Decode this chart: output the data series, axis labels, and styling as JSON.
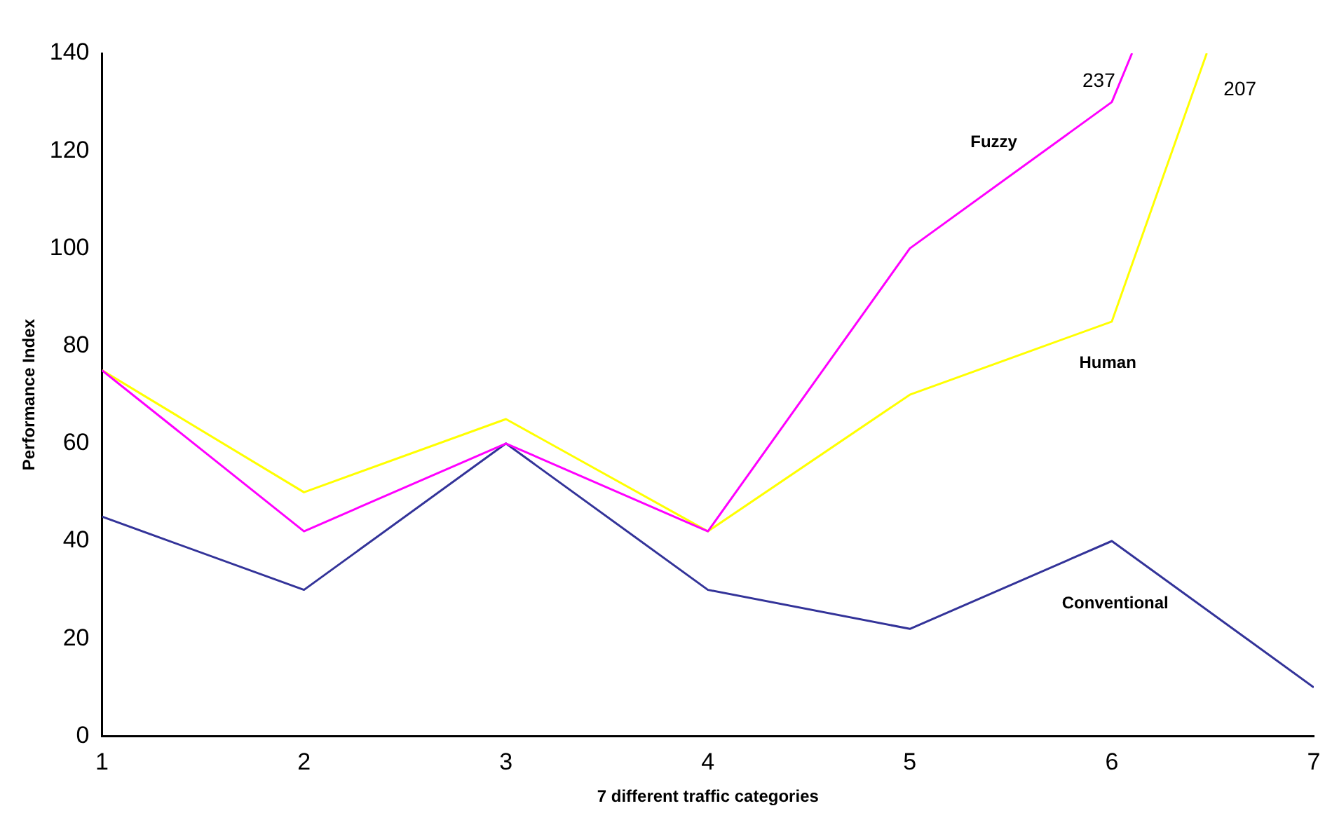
{
  "chart_data": {
    "type": "line",
    "xlabel": "7 different traffic categories",
    "ylabel": "Performance Index",
    "x": [
      1,
      2,
      3,
      4,
      5,
      6,
      7
    ],
    "xlim": [
      1,
      7
    ],
    "xticks": [
      1,
      2,
      3,
      4,
      5,
      6,
      7
    ],
    "ylim": [
      0,
      140
    ],
    "yticks": [
      0,
      20,
      40,
      60,
      80,
      100,
      120,
      140
    ],
    "grid": false,
    "legend": false,
    "marker": "none",
    "line_style": "solid",
    "annotations": [
      "237",
      "207"
    ],
    "series": [
      {
        "name": "Fuzzy",
        "color": "#ff00ff",
        "x": [
          1,
          2,
          3,
          4,
          5,
          6,
          6.1
        ],
        "values": [
          75,
          42,
          60,
          42,
          100,
          130,
          140
        ]
      },
      {
        "name": "Human",
        "color": "#ffff00",
        "x": [
          1,
          2,
          3,
          4,
          5,
          6,
          6.47
        ],
        "values": [
          75,
          50,
          65,
          42,
          70,
          85,
          140
        ]
      },
      {
        "name": "Conventional",
        "color": "#333399",
        "values": [
          45,
          30,
          60,
          30,
          22,
          40,
          10
        ]
      }
    ]
  }
}
